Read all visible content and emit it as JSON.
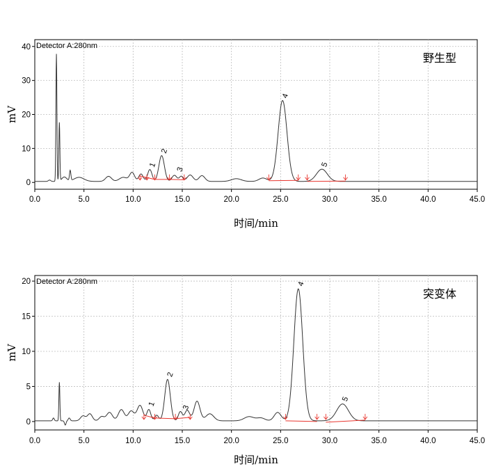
{
  "chart_data": [
    {
      "type": "line",
      "detector_label": "Detector A:280nm",
      "sample_label": "野生型",
      "xlabel": "时间/min",
      "ylabel": "mV",
      "xlim": [
        0,
        45
      ],
      "ylim": [
        -2,
        42
      ],
      "xticks": [
        "0.0",
        "5.0",
        "10.0",
        "15.0",
        "20.0",
        "25.0",
        "30.0",
        "35.0",
        "40.0",
        "45.0"
      ],
      "yticks": [
        "0",
        "10",
        "20",
        "30",
        "40"
      ],
      "baseline": 0.3,
      "peaks": [
        {
          "t": 1.5,
          "h": 0.4,
          "w": 0.12
        },
        {
          "t": 2.2,
          "h": 37.5,
          "w": 0.05
        },
        {
          "t": 2.5,
          "h": 17.2,
          "w": 0.05
        },
        {
          "t": 3.0,
          "h": 1.3,
          "w": 0.25
        },
        {
          "t": 3.6,
          "h": 3.0,
          "w": 0.07
        },
        {
          "t": 4.5,
          "h": 1.2,
          "w": 0.5
        },
        {
          "t": 7.5,
          "h": 1.5,
          "w": 0.3
        },
        {
          "t": 9.0,
          "h": 1.2,
          "w": 0.4
        },
        {
          "t": 9.9,
          "h": 2.6,
          "w": 0.25
        },
        {
          "t": 10.8,
          "h": 2.2,
          "w": 0.22
        },
        {
          "t": 11.7,
          "h": 3.5,
          "w": 0.22
        },
        {
          "t": 12.9,
          "h": 7.6,
          "w": 0.28
        },
        {
          "t": 14.2,
          "h": 1.8,
          "w": 0.25
        },
        {
          "t": 14.9,
          "h": 1.5,
          "w": 0.2
        },
        {
          "t": 15.8,
          "h": 1.9,
          "w": 0.3
        },
        {
          "t": 17.0,
          "h": 1.7,
          "w": 0.3
        },
        {
          "t": 20.5,
          "h": 0.8,
          "w": 0.5
        },
        {
          "t": 23.2,
          "h": 1.0,
          "w": 0.4
        },
        {
          "t": 25.2,
          "h": 23.8,
          "w": 0.45
        },
        {
          "t": 29.2,
          "h": 3.6,
          "w": 0.55
        }
      ],
      "peak_labels": [
        {
          "text": "1",
          "t": 11.7,
          "y": 3.5
        },
        {
          "text": "2",
          "t": 12.9,
          "y": 7.6
        },
        {
          "text": "3",
          "t": 14.5,
          "y": 2.2
        },
        {
          "text": "4",
          "t": 25.2,
          "y": 23.8
        },
        {
          "text": "5",
          "t": 29.2,
          "y": 3.6
        }
      ],
      "integration_baselines": [
        {
          "t1": 10.7,
          "y1": 1.9,
          "t2": 12.2,
          "y2": 0.9
        },
        {
          "t1": 12.2,
          "y1": 0.9,
          "t2": 13.7,
          "y2": 0.9
        },
        {
          "t1": 13.7,
          "y1": 0.9,
          "t2": 15.2,
          "y2": 0.8
        },
        {
          "t1": 23.8,
          "y1": 0.5,
          "t2": 26.8,
          "y2": 0.6
        },
        {
          "t1": 27.7,
          "y1": 0.3,
          "t2": 31.6,
          "y2": 0.4
        }
      ],
      "integration_markers": [
        10.7,
        11.4,
        12.2,
        13.7,
        15.2,
        23.8,
        26.8,
        27.7,
        31.6
      ]
    },
    {
      "type": "line",
      "detector_label": "Detector A:280nm",
      "sample_label": "突变体",
      "xlabel": "时间/min",
      "ylabel": "mV",
      "xlim": [
        0,
        45
      ],
      "ylim": [
        -1.2,
        20.8
      ],
      "xticks": [
        "0.0",
        "5.0",
        "10.0",
        "15.0",
        "20.0",
        "25.0",
        "30.0",
        "35.0",
        "40.0",
        "45.0"
      ],
      "yticks": [
        "0",
        "5",
        "10",
        "15",
        "20"
      ],
      "baseline": 0.1,
      "peaks": [
        {
          "t": 1.9,
          "h": 0.4,
          "w": 0.08
        },
        {
          "t": 2.5,
          "h": 5.5,
          "w": 0.05
        },
        {
          "t": 3.1,
          "h": -0.6,
          "w": 0.08
        },
        {
          "t": 3.5,
          "h": 0.4,
          "w": 0.1
        },
        {
          "t": 4.9,
          "h": 0.7,
          "w": 0.25
        },
        {
          "t": 5.6,
          "h": 1.0,
          "w": 0.25
        },
        {
          "t": 6.8,
          "h": 0.6,
          "w": 0.25
        },
        {
          "t": 7.6,
          "h": 1.2,
          "w": 0.3
        },
        {
          "t": 8.8,
          "h": 1.6,
          "w": 0.3
        },
        {
          "t": 9.8,
          "h": 1.4,
          "w": 0.3
        },
        {
          "t": 10.7,
          "h": 2.2,
          "w": 0.3
        },
        {
          "t": 11.6,
          "h": 1.6,
          "w": 0.2
        },
        {
          "t": 12.4,
          "h": 0.8,
          "w": 0.2
        },
        {
          "t": 13.5,
          "h": 5.9,
          "w": 0.28
        },
        {
          "t": 14.8,
          "h": 1.3,
          "w": 0.2
        },
        {
          "t": 15.5,
          "h": 1.5,
          "w": 0.25
        },
        {
          "t": 16.5,
          "h": 2.8,
          "w": 0.3
        },
        {
          "t": 17.8,
          "h": 1.0,
          "w": 0.4
        },
        {
          "t": 21.8,
          "h": 0.6,
          "w": 0.5
        },
        {
          "t": 23.0,
          "h": 0.4,
          "w": 0.4
        },
        {
          "t": 24.7,
          "h": 1.2,
          "w": 0.35
        },
        {
          "t": 26.8,
          "h": 18.8,
          "w": 0.45
        },
        {
          "t": 31.3,
          "h": 2.4,
          "w": 0.6
        }
      ],
      "peak_labels": [
        {
          "text": "1",
          "t": 11.6,
          "y": 1.7
        },
        {
          "text": "2",
          "t": 13.5,
          "y": 5.9
        },
        {
          "text": "3",
          "t": 15.1,
          "y": 1.2
        },
        {
          "text": "4",
          "t": 26.8,
          "y": 18.8
        },
        {
          "text": "5",
          "t": 31.3,
          "y": 2.4
        }
      ],
      "integration_baselines": [
        {
          "t1": 11.1,
          "y1": 0.9,
          "t2": 12.2,
          "y2": 0.5
        },
        {
          "t1": 12.2,
          "y1": 0.5,
          "t2": 14.3,
          "y2": 0.4
        },
        {
          "t1": 14.3,
          "y1": 0.4,
          "t2": 15.8,
          "y2": 0.6
        },
        {
          "t1": 25.5,
          "y1": 0.1,
          "t2": 28.7,
          "y2": 0.0
        },
        {
          "t1": 29.6,
          "y1": -0.1,
          "t2": 33.6,
          "y2": 0.2
        }
      ],
      "integration_markers": [
        11.1,
        12.2,
        14.3,
        15.8,
        25.5,
        28.7,
        29.6,
        33.6
      ]
    }
  ]
}
